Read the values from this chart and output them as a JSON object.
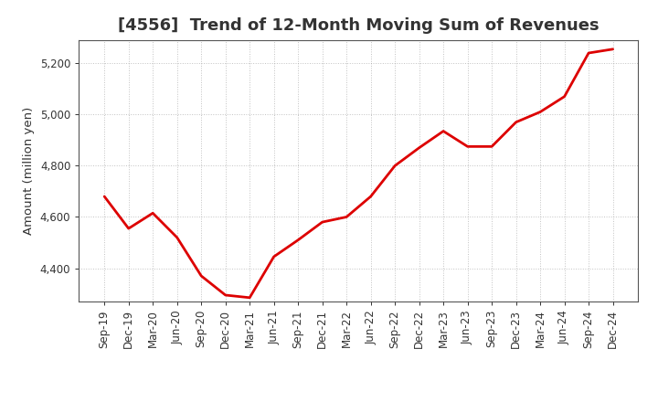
{
  "title": "[4556]  Trend of 12-Month Moving Sum of Revenues",
  "ylabel": "Amount (million yen)",
  "line_color": "#dd0000",
  "background_color": "#ffffff",
  "plot_bg_color": "#ffffff",
  "grid_color": "#999999",
  "x_labels": [
    "Sep-19",
    "Dec-19",
    "Mar-20",
    "Jun-20",
    "Sep-20",
    "Dec-20",
    "Mar-21",
    "Jun-21",
    "Sep-21",
    "Dec-21",
    "Mar-22",
    "Jun-22",
    "Sep-22",
    "Dec-22",
    "Mar-23",
    "Jun-23",
    "Sep-23",
    "Dec-23",
    "Mar-24",
    "Jun-24",
    "Sep-24",
    "Dec-24"
  ],
  "values": [
    4680,
    4555,
    4615,
    4520,
    4370,
    4295,
    4285,
    4445,
    4510,
    4580,
    4600,
    4680,
    4800,
    4870,
    4935,
    4875,
    4875,
    4970,
    5010,
    5070,
    5240,
    5255
  ],
  "ylim": [
    4270,
    5290
  ],
  "yticks": [
    4400,
    4600,
    4800,
    5000,
    5200
  ],
  "line_width": 2.0,
  "title_fontsize": 13,
  "axis_fontsize": 9.5,
  "tick_fontsize": 8.5
}
